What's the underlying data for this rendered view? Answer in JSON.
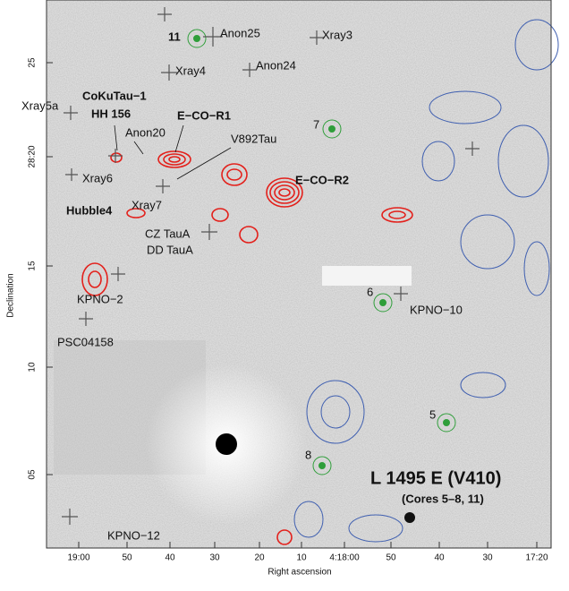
{
  "figure": {
    "title": "L 1495 E (V410)",
    "subtitle": "(Cores 5–8, 11)",
    "x_axis": {
      "label": "Right ascension",
      "ticks": [
        "19:00",
        "50",
        "40",
        "30",
        "20",
        "10",
        "4:18:00",
        "50",
        "40",
        "30",
        "17:20"
      ]
    },
    "y_axis": {
      "label": "Declination",
      "ticks": [
        "25",
        "28:20",
        "15",
        "10",
        "05"
      ]
    },
    "cores": [
      "11",
      "7",
      "6",
      "5",
      "8"
    ],
    "sources": [
      "Anon25",
      "Xray3",
      "Xray4",
      "Anon24",
      "Xray5a",
      "CoKuTau−1",
      "HH 156",
      "E−CO−R1",
      "Anon20",
      "V892Tau",
      "Xray6",
      "E−CO−R2",
      "Hubble4",
      "Xray7",
      "CZ TauA",
      "DD TauA",
      "KPNO−2",
      "KPNO−10",
      "PSC04158",
      "KPNO−12"
    ]
  }
}
